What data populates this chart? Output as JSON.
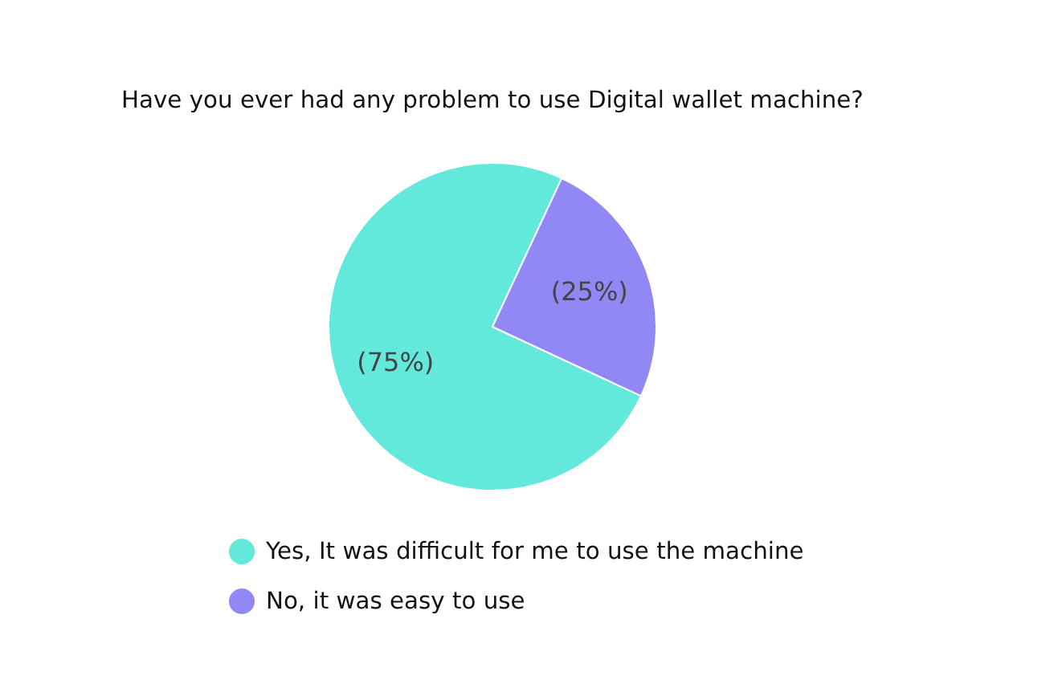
{
  "chart_data": {
    "type": "pie",
    "title": "Have you ever had any problem to use Digital wallet machine?",
    "categories": [
      "Yes, It was difficult for me to use the machine",
      "No, it was easy to use"
    ],
    "values": [
      75,
      25
    ],
    "colors": [
      "#63e8dc",
      "#9188f5"
    ],
    "value_labels": [
      "(75%)",
      "(25%)"
    ],
    "legend": "bottom"
  }
}
